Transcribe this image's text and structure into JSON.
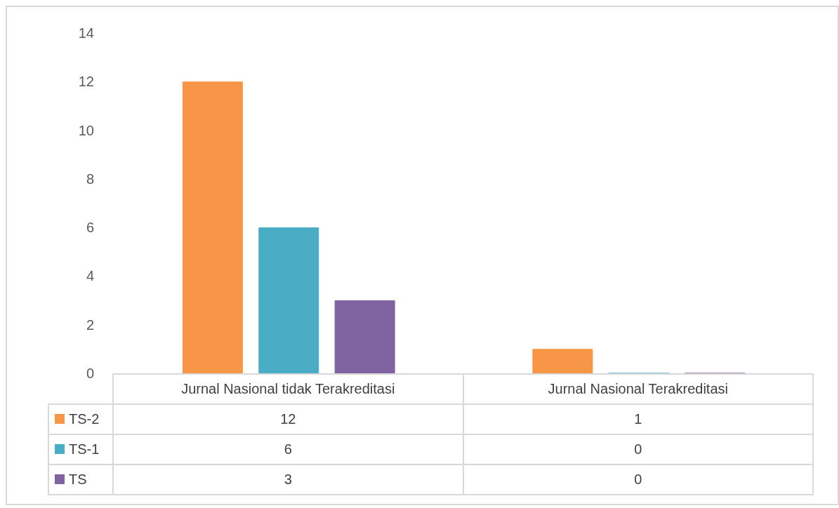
{
  "chart_data": {
    "type": "bar",
    "categories": [
      "Jurnal Nasional tidak Terakreditasi",
      "Jurnal Nasional Terakreditasi"
    ],
    "series": [
      {
        "name": "TS-2",
        "color": "#f79646",
        "values": [
          12,
          1
        ]
      },
      {
        "name": "TS-1",
        "color": "#4bacc6",
        "values": [
          6,
          0
        ]
      },
      {
        "name": "TS",
        "color": "#8064a2",
        "values": [
          3,
          0
        ]
      }
    ],
    "ylim": [
      0,
      14
    ],
    "yticks": [
      0,
      2,
      4,
      6,
      8,
      10,
      12,
      14
    ],
    "grid": false,
    "legend": "bottom left",
    "data_labels": true
  }
}
